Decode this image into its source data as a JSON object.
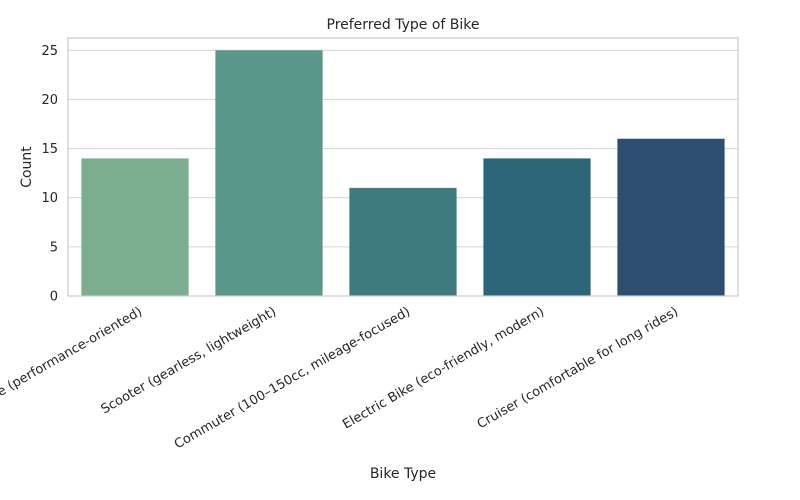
{
  "chart_data": {
    "type": "bar",
    "title": "Preferred Type of Bike",
    "xlabel": "Bike Type",
    "ylabel": "Count",
    "categories": [
      "Sports Bike (performance-oriented)",
      "Scooter (gearless, lightweight)",
      "Commuter (100–150cc, mileage-focused)",
      "Electric Bike (eco-friendly, modern)",
      "Cruiser (comfortable for long rides)"
    ],
    "values": [
      14,
      25,
      11,
      14,
      16
    ],
    "colors": [
      "#7aae8f",
      "#5a968a",
      "#3e7b7f",
      "#2d657a",
      "#2e4e71"
    ],
    "ylim": [
      0,
      26.25
    ],
    "yticks": [
      0,
      5,
      10,
      15,
      20,
      25
    ],
    "grid": true,
    "legend": "none"
  }
}
